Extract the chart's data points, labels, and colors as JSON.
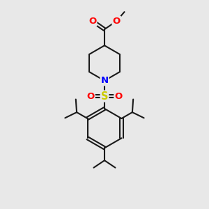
{
  "bg_color": "#e8e8e8",
  "line_color": "#1a1a1a",
  "bond_width": 1.5,
  "atom_colors": {
    "O": "#ff0000",
    "N": "#0000ff",
    "S": "#cccc00",
    "C": "#1a1a1a"
  },
  "font_size_atom": 9.5,
  "figsize": [
    3.0,
    3.0
  ],
  "dpi": 100
}
